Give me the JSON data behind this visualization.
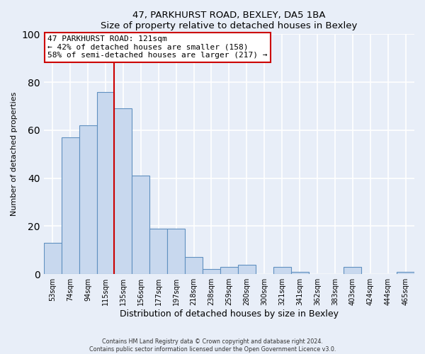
{
  "title": "47, PARKHURST ROAD, BEXLEY, DA5 1BA",
  "subtitle": "Size of property relative to detached houses in Bexley",
  "xlabel": "Distribution of detached houses by size in Bexley",
  "ylabel": "Number of detached properties",
  "footer_line1": "Contains HM Land Registry data © Crown copyright and database right 2024.",
  "footer_line2": "Contains public sector information licensed under the Open Government Licence v3.0.",
  "bar_labels": [
    "53sqm",
    "74sqm",
    "94sqm",
    "115sqm",
    "135sqm",
    "156sqm",
    "177sqm",
    "197sqm",
    "218sqm",
    "238sqm",
    "259sqm",
    "280sqm",
    "300sqm",
    "321sqm",
    "341sqm",
    "362sqm",
    "383sqm",
    "403sqm",
    "424sqm",
    "444sqm",
    "465sqm"
  ],
  "bar_values": [
    13,
    57,
    62,
    76,
    69,
    41,
    19,
    19,
    7,
    2,
    3,
    4,
    0,
    3,
    1,
    0,
    0,
    3,
    0,
    0,
    1
  ],
  "bar_color": "#c8d8ee",
  "bar_edge_color": "#6090c0",
  "annotation_title": "47 PARKHURST ROAD: 121sqm",
  "annotation_line1": "← 42% of detached houses are smaller (158)",
  "annotation_line2": "58% of semi-detached houses are larger (217) →",
  "annotation_box_color": "#ffffff",
  "annotation_box_edge_color": "#cc0000",
  "property_line_color": "#cc0000",
  "property_line_x": 3.5,
  "ylim": [
    0,
    100
  ],
  "background_color": "#e8eef8",
  "plot_background": "#e8eef8",
  "grid_color": "#ffffff"
}
